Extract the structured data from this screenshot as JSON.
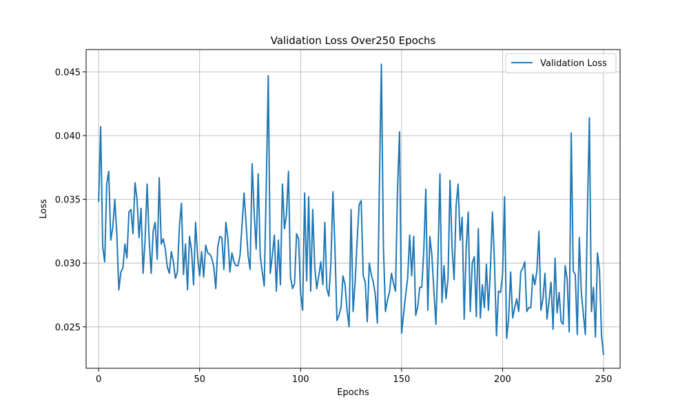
{
  "chart_data": {
    "type": "line",
    "title": "Validation Loss Over250 Epochs",
    "xlabel": "Epochs",
    "ylabel": "Loss",
    "xlim": [
      -6.2,
      258.2
    ],
    "ylim": [
      0.02175,
      0.04675
    ],
    "xticks": [
      0,
      50,
      100,
      150,
      200,
      250
    ],
    "yticks": [
      0.025,
      0.03,
      0.035,
      0.04,
      0.045
    ],
    "ytick_labels": [
      "0.025",
      "0.030",
      "0.035",
      "0.040",
      "0.045"
    ],
    "grid": true,
    "legend_position": "top-right",
    "series": [
      {
        "name": "Validation Loss",
        "color": "#1f77b4",
        "values": [
          0.0348,
          0.0407,
          0.0313,
          0.0301,
          0.0362,
          0.0372,
          0.0318,
          0.0328,
          0.035,
          0.0323,
          0.0279,
          0.0293,
          0.0296,
          0.0315,
          0.0304,
          0.034,
          0.0342,
          0.0323,
          0.0363,
          0.035,
          0.032,
          0.0343,
          0.0292,
          0.0318,
          0.0362,
          0.0319,
          0.0292,
          0.0325,
          0.0332,
          0.0303,
          0.0367,
          0.0315,
          0.0319,
          0.0311,
          0.0297,
          0.0292,
          0.0309,
          0.0301,
          0.0288,
          0.0293,
          0.0329,
          0.0347,
          0.0291,
          0.0315,
          0.0279,
          0.0321,
          0.031,
          0.0283,
          0.0332,
          0.0305,
          0.029,
          0.0309,
          0.0289,
          0.0314,
          0.0308,
          0.0307,
          0.0304,
          0.0297,
          0.028,
          0.0313,
          0.0321,
          0.032,
          0.0295,
          0.0332,
          0.0319,
          0.0293,
          0.0308,
          0.0301,
          0.0298,
          0.0298,
          0.0306,
          0.033,
          0.0355,
          0.0331,
          0.0306,
          0.0295,
          0.0378,
          0.034,
          0.0311,
          0.037,
          0.0306,
          0.0293,
          0.0282,
          0.0361,
          0.0447,
          0.0292,
          0.0306,
          0.0322,
          0.0278,
          0.0318,
          0.0283,
          0.0362,
          0.0327,
          0.0338,
          0.0372,
          0.0289,
          0.028,
          0.0284,
          0.0323,
          0.0319,
          0.0276,
          0.0263,
          0.0355,
          0.0286,
          0.0352,
          0.0278,
          0.0342,
          0.0297,
          0.028,
          0.029,
          0.0301,
          0.0283,
          0.0332,
          0.028,
          0.0274,
          0.03,
          0.0356,
          0.0312,
          0.0255,
          0.0259,
          0.0265,
          0.029,
          0.0283,
          0.0263,
          0.025,
          0.0342,
          0.0262,
          0.0285,
          0.0318,
          0.0346,
          0.0349,
          0.029,
          0.0285,
          0.0254,
          0.03,
          0.0291,
          0.0285,
          0.0275,
          0.0253,
          0.036,
          0.0456,
          0.0313,
          0.0262,
          0.0271,
          0.0277,
          0.0292,
          0.0284,
          0.0278,
          0.0359,
          0.0403,
          0.0245,
          0.026,
          0.0275,
          0.0288,
          0.0322,
          0.029,
          0.0321,
          0.0259,
          0.0266,
          0.0281,
          0.0281,
          0.031,
          0.0358,
          0.0263,
          0.0321,
          0.0306,
          0.0278,
          0.0252,
          0.0303,
          0.037,
          0.0269,
          0.0298,
          0.0272,
          0.0288,
          0.0365,
          0.0312,
          0.0287,
          0.0345,
          0.0362,
          0.0318,
          0.0336,
          0.0256,
          0.0312,
          0.034,
          0.0262,
          0.03,
          0.0305,
          0.0258,
          0.0327,
          0.0257,
          0.0283,
          0.0265,
          0.0299,
          0.0263,
          0.0296,
          0.034,
          0.03,
          0.0243,
          0.0278,
          0.0277,
          0.0291,
          0.0352,
          0.0241,
          0.0256,
          0.0293,
          0.0257,
          0.0265,
          0.0272,
          0.0262,
          0.0293,
          0.0296,
          0.0301,
          0.0262,
          0.0265,
          0.0265,
          0.0291,
          0.0283,
          0.0294,
          0.0325,
          0.0263,
          0.0272,
          0.0292,
          0.0256,
          0.027,
          0.0285,
          0.0248,
          0.0304,
          0.0261,
          0.0277,
          0.0254,
          0.0252,
          0.0298,
          0.0287,
          0.0246,
          0.0402,
          0.0294,
          0.0291,
          0.0244,
          0.032,
          0.0277,
          0.026,
          0.0244,
          0.034,
          0.0414,
          0.0262,
          0.0281,
          0.0242,
          0.0308,
          0.0294,
          0.0243,
          0.0228
        ]
      }
    ]
  }
}
